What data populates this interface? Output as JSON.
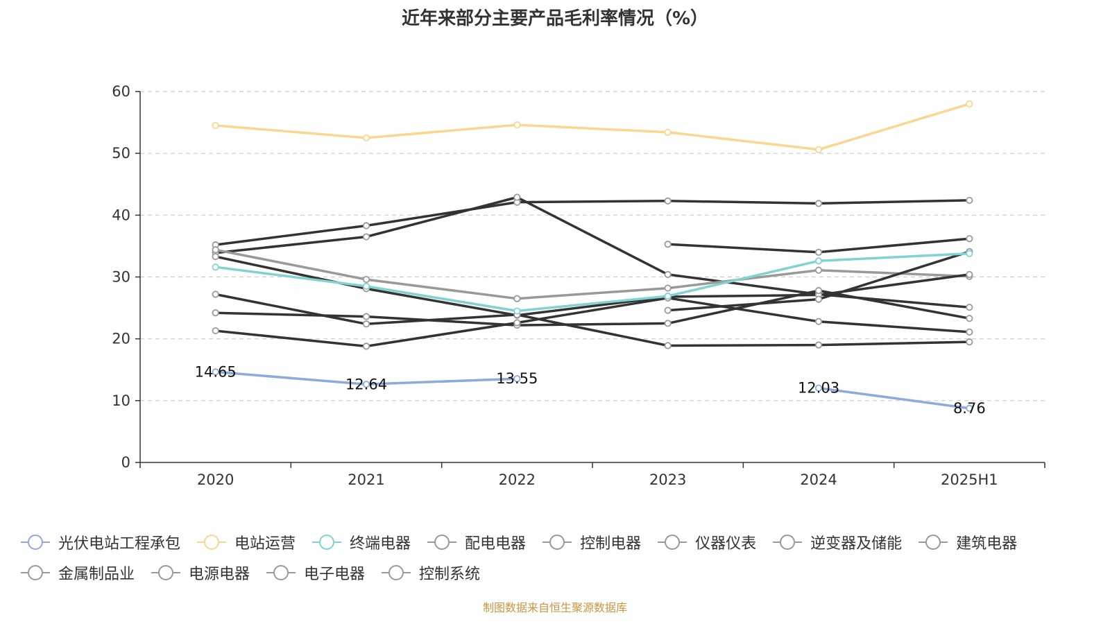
{
  "chart_data": {
    "type": "line",
    "title": "近年来部分主要产品毛利率情况（%）",
    "categories": [
      "2020",
      "2021",
      "2022",
      "2023",
      "2024",
      "2025H1"
    ],
    "ylim": [
      0,
      60
    ],
    "yticks": [
      0,
      10,
      20,
      30,
      40,
      50,
      60
    ],
    "grid": true,
    "legend_position": "bottom",
    "series": [
      {
        "name": "光伏电站工程承包",
        "color": "#8ea9db",
        "values": [
          14.65,
          12.64,
          13.55,
          null,
          12.03,
          8.76
        ],
        "labels": [
          "14.65",
          "12.64",
          "13.55",
          null,
          "12.03",
          "8.76"
        ]
      },
      {
        "name": "电站运营",
        "color": "#fcd68e",
        "values": [
          54.5,
          52.5,
          54.6,
          53.4,
          50.6,
          58.0
        ]
      },
      {
        "name": "终端电器",
        "color": "#7fd3d3",
        "values": [
          31.6,
          28.5,
          24.5,
          26.9,
          32.6,
          33.8
        ]
      },
      {
        "name": "配电电器",
        "color": "#333333",
        "values": [
          35.2,
          38.3,
          42.1,
          42.3,
          41.9,
          42.4
        ]
      },
      {
        "name": "控制电器",
        "color": "#333333",
        "values": [
          33.9,
          36.5,
          42.9,
          30.4,
          27.2,
          25.1
        ]
      },
      {
        "name": "仪器仪表",
        "color": "#999999",
        "values": [
          34.4,
          29.6,
          26.5,
          28.2,
          31.1,
          30.1
        ]
      },
      {
        "name": "逆变器及储能",
        "color": "#333333",
        "values": [
          null,
          null,
          null,
          35.3,
          34.0,
          36.2
        ]
      },
      {
        "name": "建筑电器",
        "color": "#333333",
        "values": [
          33.3,
          28.1,
          23.8,
          26.8,
          27.1,
          30.4
        ]
      },
      {
        "name": "金属制品业",
        "color": "#333333",
        "values": [
          27.2,
          22.4,
          23.9,
          18.9,
          19.0,
          19.5
        ]
      },
      {
        "name": "电源电器",
        "color": "#333333",
        "values": [
          24.2,
          23.6,
          22.2,
          22.5,
          27.8,
          23.3
        ]
      },
      {
        "name": "电子电器",
        "color": "#333333",
        "values": [
          21.3,
          18.8,
          22.6,
          26.6,
          22.8,
          21.1
        ]
      },
      {
        "name": "控制系统",
        "color": "#333333",
        "values": [
          null,
          null,
          null,
          24.6,
          26.4,
          34.1
        ]
      }
    ]
  },
  "source_text": "制图数据来自恒生聚源数据库"
}
